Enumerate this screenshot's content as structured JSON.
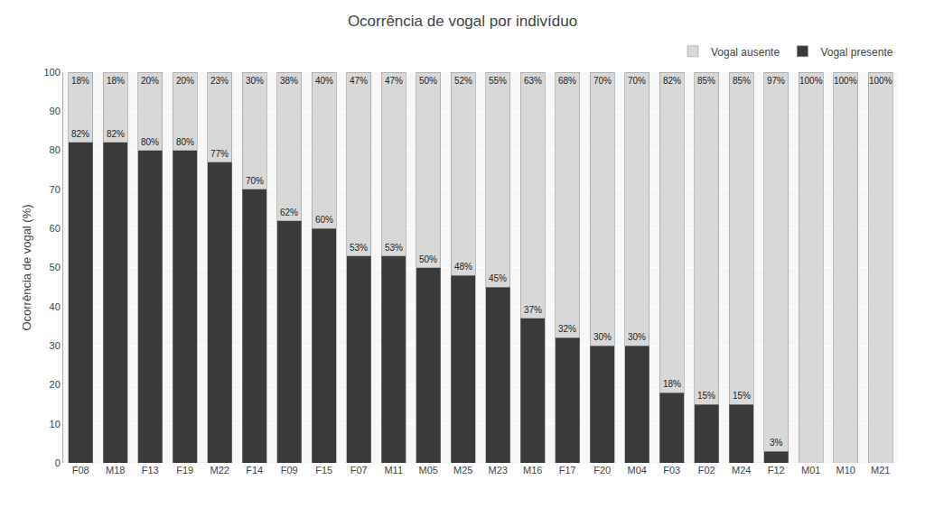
{
  "chart_data": {
    "type": "bar",
    "title": "Ocorrência de vogal por indivíduo",
    "ylabel": "Ocorrência de vogal (%)",
    "categories": [
      "F08",
      "M18",
      "F13",
      "F19",
      "M22",
      "F14",
      "F09",
      "F15",
      "F07",
      "M11",
      "M05",
      "M25",
      "M23",
      "M16",
      "F17",
      "F20",
      "M04",
      "F03",
      "F02",
      "M24",
      "F12",
      "M01",
      "M10",
      "M21"
    ],
    "series": [
      {
        "name": "Vogal presente",
        "color": "#3a3a3a",
        "values": [
          82,
          82,
          80,
          80,
          77,
          70,
          62,
          60,
          53,
          53,
          50,
          48,
          45,
          37,
          32,
          30,
          30,
          18,
          15,
          15,
          3,
          0,
          0,
          0
        ],
        "value_labels": [
          "82%",
          "82%",
          "80%",
          "80%",
          "77%",
          "70%",
          "62%",
          "60%",
          "53%",
          "53%",
          "50%",
          "48%",
          "45%",
          "37%",
          "32%",
          "30%",
          "30%",
          "18%",
          "15%",
          "15%",
          "3%",
          null,
          null,
          null
        ]
      },
      {
        "name": "Vogal ausente",
        "color": "#d8d8d8",
        "values": [
          18,
          18,
          20,
          20,
          23,
          30,
          38,
          40,
          47,
          47,
          50,
          52,
          55,
          63,
          68,
          70,
          70,
          82,
          85,
          85,
          97,
          100,
          100,
          100
        ],
        "value_labels": [
          "18%",
          "18%",
          "20%",
          "20%",
          "23%",
          "30%",
          "38%",
          "40%",
          "47%",
          "47%",
          "50%",
          "52%",
          "55%",
          "63%",
          "68%",
          "70%",
          "70%",
          "82%",
          "85%",
          "85%",
          "97%",
          "100%",
          "100%",
          "100%"
        ]
      }
    ],
    "stacked": true,
    "ylim": [
      0,
      100
    ],
    "yticks": [
      0,
      10,
      20,
      30,
      40,
      50,
      60,
      70,
      80,
      90,
      100
    ],
    "grid": true,
    "legend": "upper right"
  }
}
